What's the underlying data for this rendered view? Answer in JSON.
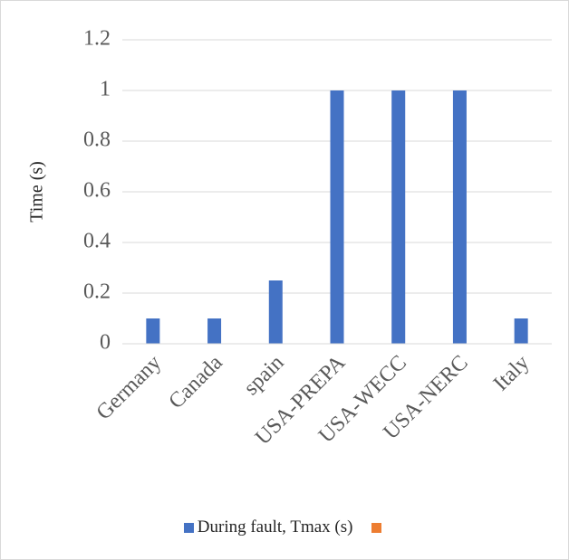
{
  "chart_data": {
    "type": "bar",
    "categories": [
      "Germany",
      "Canada",
      "spain",
      "USA-PREPA",
      "USA-WECC",
      "USA-NERC",
      "Italy"
    ],
    "series": [
      {
        "name": "During fault, Tmax (s)",
        "color": "#4472c4",
        "values": [
          0.1,
          0.1,
          0.25,
          1,
          1,
          1,
          0.1
        ]
      },
      {
        "name": "",
        "color": "#ed7d31",
        "values": [
          null,
          null,
          null,
          null,
          null,
          null,
          null
        ]
      }
    ],
    "yticks": [
      "0",
      "0.2",
      "0.4",
      "0.6",
      "0.8",
      "1",
      "1.2"
    ],
    "ylim": [
      0,
      1.2
    ],
    "ylabel": "Time (s)",
    "xlabel": "",
    "grid": true,
    "legend": "bottom"
  }
}
